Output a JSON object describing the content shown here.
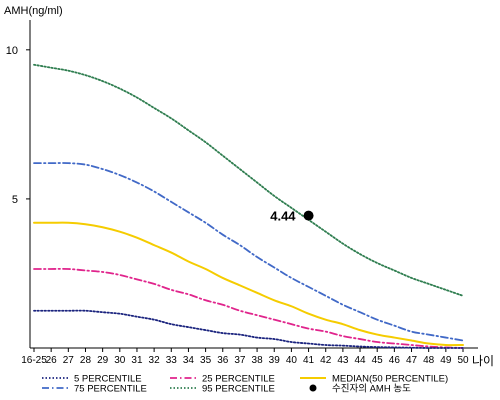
{
  "chart_data": {
    "type": "line",
    "ylabel": "AMH(ng/ml)",
    "xlabel": "나이",
    "categories": [
      "16-25",
      "26",
      "27",
      "28",
      "29",
      "30",
      "31",
      "32",
      "33",
      "34",
      "35",
      "36",
      "37",
      "38",
      "39",
      "40",
      "41",
      "42",
      "43",
      "44",
      "45",
      "46",
      "47",
      "48",
      "49",
      "50"
    ],
    "y_ticks": [
      5,
      10
    ],
    "ylim": [
      0,
      11
    ],
    "series": [
      {
        "name": "95 PERCENTILE",
        "color": "#2e7d4f",
        "style": "dotted",
        "values": [
          9.5,
          9.4,
          9.3,
          9.15,
          8.95,
          8.7,
          8.4,
          8.05,
          7.7,
          7.3,
          6.9,
          6.45,
          6.0,
          5.55,
          5.1,
          4.7,
          4.3,
          3.9,
          3.5,
          3.15,
          2.85,
          2.6,
          2.35,
          2.15,
          1.95,
          1.75
        ]
      },
      {
        "name": "75 PERCENTILE",
        "color": "#4169c7",
        "style": "dashdot",
        "values": [
          6.2,
          6.2,
          6.2,
          6.15,
          6.0,
          5.8,
          5.55,
          5.25,
          4.9,
          4.55,
          4.2,
          3.8,
          3.45,
          3.05,
          2.7,
          2.35,
          2.05,
          1.75,
          1.45,
          1.2,
          0.95,
          0.75,
          0.55,
          0.45,
          0.35,
          0.25
        ]
      },
      {
        "name": "MEDIAN(50 PERCENTILE)",
        "color": "#f5cc00",
        "style": "solid",
        "values": [
          4.2,
          4.2,
          4.2,
          4.15,
          4.05,
          3.9,
          3.7,
          3.45,
          3.2,
          2.9,
          2.65,
          2.35,
          2.1,
          1.85,
          1.6,
          1.4,
          1.15,
          0.95,
          0.8,
          0.6,
          0.45,
          0.35,
          0.25,
          0.15,
          0.1,
          0.1
        ]
      },
      {
        "name": "25 PERCENTILE",
        "color": "#e0248c",
        "style": "dashdot",
        "values": [
          2.65,
          2.65,
          2.65,
          2.6,
          2.55,
          2.45,
          2.3,
          2.15,
          1.95,
          1.8,
          1.6,
          1.45,
          1.25,
          1.1,
          0.95,
          0.8,
          0.65,
          0.55,
          0.4,
          0.3,
          0.2,
          0.15,
          0.1,
          0.05,
          0.02,
          0.0
        ]
      },
      {
        "name": "5 PERCENTILE",
        "color": "#1a237e",
        "style": "dotted",
        "values": [
          1.25,
          1.25,
          1.25,
          1.25,
          1.2,
          1.15,
          1.05,
          0.95,
          0.8,
          0.7,
          0.6,
          0.5,
          0.45,
          0.35,
          0.3,
          0.2,
          0.15,
          0.1,
          0.08,
          0.05,
          0.03,
          0.02,
          0.01,
          0.0,
          0.0,
          0.0
        ]
      }
    ],
    "patient": {
      "label": "수진자의 AMH 농도",
      "x": "41",
      "y": 4.44,
      "value_label": "4.44"
    },
    "legend_position": "bottom"
  }
}
